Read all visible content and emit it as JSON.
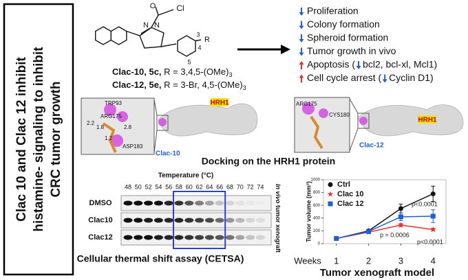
{
  "panel": {
    "lines": [
      "Clac 10 and Clac 12 inhibit",
      "histamine- signaling to inhibit",
      "CRC tumor growth"
    ]
  },
  "structure": {
    "atoms": {
      "cl": "Cl",
      "o": "O",
      "n1": "N",
      "n2": "N",
      "r": "R",
      "p3": "3",
      "p4": "4",
      "p5": "5"
    },
    "compounds": [
      {
        "name": "Clac-10, 5c,",
        "formula": "R = 3,4,5-(OMe)",
        "sub": "3"
      },
      {
        "name": "Clac-12, 5e,",
        "formula": "R = 3-Br, 4,5-(OMe)",
        "sub": "3"
      }
    ]
  },
  "effects": {
    "down": [
      "Proliferation",
      "Colony formation",
      "Spheroid formation",
      "Tumor growth in vivo"
    ],
    "apoptosis": [
      "Apoptosis (",
      "bcl2, bcl-xl, Mcl1)"
    ],
    "cell_cycle": [
      "Cell cycle arrest (",
      "Cyclin D1)"
    ]
  },
  "docking": {
    "left": {
      "residues": [
        "TRP93",
        "ARG175",
        "ASP183"
      ],
      "distances": [
        "2.2",
        "1.8",
        "2.8",
        "1.2"
      ],
      "ligand": "Clac-10",
      "protein": "HRH1"
    },
    "right": {
      "residues": [
        "ARG175",
        "CYS180"
      ],
      "ligand": "Clac-12",
      "protein": "HRH1"
    },
    "caption": "Docking on the HRH1 protein"
  },
  "cetsa": {
    "axis_label": "Temperature (°C)",
    "temperatures": [
      48,
      50,
      52,
      54,
      56,
      58,
      60,
      62,
      64,
      66,
      68,
      70,
      72,
      74
    ],
    "rows": [
      "DMSO",
      "Clac10",
      "Clac12"
    ],
    "side_label": [
      "In vivo",
      "tumor xenograft"
    ],
    "caption": "Cellular thermal shift assay (CETSA)"
  },
  "chart_data": {
    "type": "line",
    "ylabel": "Tumor volume (mm³)",
    "xlabel": "Weeks",
    "title": "Tumor xenograft model",
    "x": [
      1,
      2,
      3,
      4
    ],
    "xlim": [
      0.6,
      4.4
    ],
    "xticks": [
      1,
      2,
      3,
      4
    ],
    "ylim": [
      0,
      1000
    ],
    "yticks": [
      0,
      200,
      400,
      600,
      800,
      1000
    ],
    "legend": "upper left",
    "series": [
      {
        "name": "Ctrl",
        "color": "#111111",
        "marker": "circle",
        "values": [
          80,
          200,
          550,
          780
        ],
        "errors": [
          10,
          20,
          70,
          120
        ]
      },
      {
        "name": "Clac 10",
        "color": "#e8302a",
        "marker": "star",
        "values": [
          80,
          180,
          290,
          220
        ],
        "errors": [
          10,
          15,
          25,
          20
        ]
      },
      {
        "name": "Clac 12",
        "color": "#1f5fd6",
        "marker": "square",
        "values": [
          80,
          190,
          420,
          430
        ],
        "errors": [
          10,
          20,
          60,
          100
        ]
      }
    ],
    "annotations": [
      "p<0.0001",
      "p = 0.0006",
      "p<0.0001"
    ]
  }
}
